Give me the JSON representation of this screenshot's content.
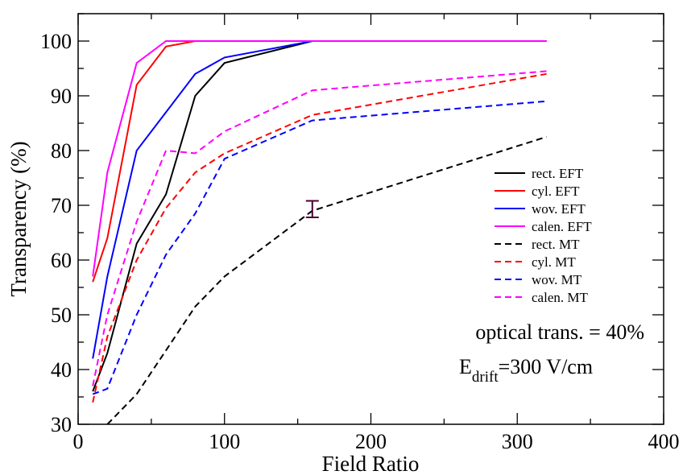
{
  "chart_data": {
    "type": "line",
    "title": "",
    "xlabel": "Field Ratio",
    "ylabel": "Transparency (%)",
    "xlim": [
      0,
      400
    ],
    "ylim": [
      30,
      105
    ],
    "x_ticks": [
      "0",
      "100",
      "200",
      "300",
      "400"
    ],
    "y_ticks": [
      "30",
      "40",
      "50",
      "60",
      "70",
      "80",
      "90",
      "100"
    ],
    "grid": false,
    "legend_position": "right-center",
    "series": [
      {
        "name": "rect. EFT",
        "color": "#000000",
        "dash": "solid",
        "x": [
          10,
          20,
          40,
          60,
          80,
          100,
          160,
          320
        ],
        "y": [
          36,
          43,
          63,
          72,
          90,
          96,
          100,
          100
        ]
      },
      {
        "name": "cyl. EFT",
        "color": "#ff0000",
        "dash": "solid",
        "x": [
          10,
          20,
          40,
          60,
          80,
          100,
          160,
          320
        ],
        "y": [
          56,
          64,
          92,
          99,
          100,
          100,
          100,
          100
        ]
      },
      {
        "name": "wov. EFT",
        "color": "#0000ff",
        "dash": "solid",
        "x": [
          10,
          20,
          40,
          60,
          80,
          100,
          160,
          320
        ],
        "y": [
          42,
          57,
          80,
          87,
          94,
          97,
          100,
          100
        ]
      },
      {
        "name": "calen. EFT",
        "color": "#ff00ff",
        "dash": "solid",
        "x": [
          10,
          20,
          40,
          60,
          80,
          100,
          160,
          320
        ],
        "y": [
          57,
          76,
          96,
          100,
          100,
          100,
          100,
          100
        ]
      },
      {
        "name": "rect. MT",
        "color": "#000000",
        "dash": "dashed",
        "x": [
          20,
          40,
          60,
          80,
          100,
          160,
          320
        ],
        "y": [
          30,
          35.5,
          43.5,
          51.5,
          57,
          69,
          82.5
        ]
      },
      {
        "name": "cyl. MT",
        "color": "#ff0000",
        "dash": "dashed",
        "x": [
          10,
          20,
          40,
          60,
          80,
          100,
          160,
          320
        ],
        "y": [
          34,
          46,
          60,
          69.5,
          76,
          79.5,
          86.5,
          94
        ]
      },
      {
        "name": "wov. MT",
        "color": "#0000ff",
        "dash": "dashed",
        "x": [
          10,
          20,
          40,
          60,
          80,
          100,
          160,
          320
        ],
        "y": [
          35.5,
          36.5,
          50,
          61,
          68.5,
          78.5,
          85.5,
          89
        ]
      },
      {
        "name": "calen. MT",
        "color": "#ff00ff",
        "dash": "dashed",
        "x": [
          10,
          20,
          40,
          60,
          80,
          100,
          160,
          320
        ],
        "y": [
          37,
          50,
          67,
          80,
          79.5,
          83.5,
          91,
          94.5
        ]
      }
    ],
    "error_bar": {
      "x": 160,
      "y": 69.3,
      "low": 67.8,
      "high": 70.8,
      "color": "#4a0030"
    },
    "annotations": {
      "optical": "optical trans. = 40%",
      "edrift_main": "E",
      "edrift_sub": "drift",
      "edrift_value": "=300 V/cm"
    }
  }
}
